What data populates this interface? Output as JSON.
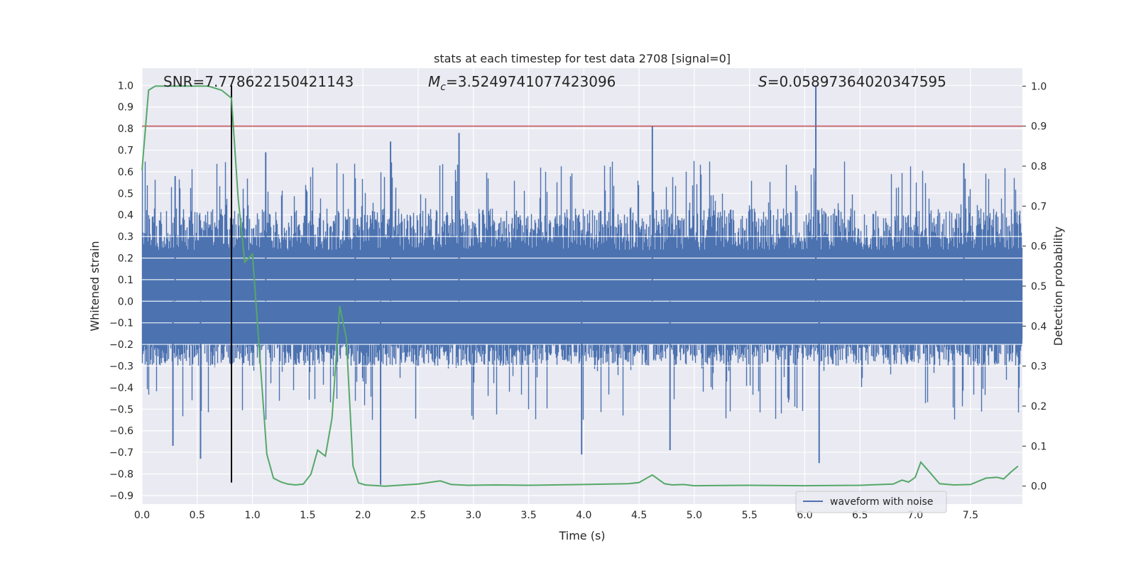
{
  "chart_data": {
    "type": "line",
    "title": "stats at each timestep for test data 2708 [signal=0]",
    "xlabel": "Time (s)",
    "ylabel": "Whitened strain",
    "ylabel_right": "Detection probability",
    "xlim": [
      0.0,
      7.97
    ],
    "ylim": [
      -0.94,
      1.08
    ],
    "ylim_right": [
      -0.045,
      1.045
    ],
    "xticks": [
      "0.0",
      "0.5",
      "1.0",
      "1.5",
      "2.0",
      "2.5",
      "3.0",
      "3.5",
      "4.0",
      "4.5",
      "5.0",
      "5.5",
      "6.0",
      "6.5",
      "7.0",
      "7.5"
    ],
    "yticks": [
      "1.0",
      "0.9",
      "0.8",
      "0.7",
      "0.6",
      "0.5",
      "0.4",
      "0.3",
      "0.2",
      "0.1",
      "0.0",
      "−0.1",
      "−0.2",
      "−0.3",
      "−0.4",
      "−0.5",
      "−0.6",
      "−0.7",
      "−0.8",
      "−0.9"
    ],
    "yticks_right": [
      "1.0",
      "0.9",
      "0.8",
      "0.7",
      "0.6",
      "0.5",
      "0.4",
      "0.3",
      "0.2",
      "0.1",
      "0.0"
    ],
    "annotations": {
      "snr": "SNR=7.778622150421143",
      "mc_symbol": "M",
      "mc_sub": "c",
      "mc_value": "=3.5249741077423096",
      "s_symbol": "S",
      "s_value": "=0.05897364020347595"
    },
    "legend": {
      "label": "waveform with noise",
      "position": "lower right"
    },
    "grid": true,
    "colors": {
      "waveform": "#4c72b0",
      "probability": "#55a868",
      "threshold": "#c44e52",
      "marker": "#000000",
      "background": "#eaeaf2"
    },
    "threshold_right": 0.9,
    "marker_time": 0.81,
    "waveform": {
      "name": "waveform with noise",
      "typical_envelope": [
        -0.3,
        0.43
      ],
      "notable_peaks": [
        {
          "x": 0.3,
          "y": 0.58
        },
        {
          "x": 1.12,
          "y": 0.69
        },
        {
          "x": 1.93,
          "y": 0.57
        },
        {
          "x": 2.25,
          "y": 0.74
        },
        {
          "x": 2.87,
          "y": 0.78
        },
        {
          "x": 4.62,
          "y": 0.81
        },
        {
          "x": 6.1,
          "y": 1.0
        },
        {
          "x": 7.44,
          "y": 0.64
        }
      ],
      "notable_troughs": [
        {
          "x": 0.28,
          "y": -0.67
        },
        {
          "x": 0.53,
          "y": -0.73
        },
        {
          "x": 2.16,
          "y": -0.85
        },
        {
          "x": 3.98,
          "y": -0.71
        },
        {
          "x": 4.78,
          "y": -0.69
        },
        {
          "x": 6.13,
          "y": -0.75
        }
      ]
    },
    "probability": {
      "name": "Detection probability",
      "x": [
        0.0,
        0.06,
        0.12,
        0.2,
        0.4,
        0.6,
        0.72,
        0.81,
        0.87,
        0.93,
        1.0,
        1.06,
        1.13,
        1.19,
        1.26,
        1.32,
        1.39,
        1.46,
        1.53,
        1.59,
        1.66,
        1.72,
        1.79,
        1.85,
        1.91,
        1.96,
        2.02,
        2.2,
        2.5,
        2.7,
        2.8,
        2.95,
        3.2,
        3.5,
        4.0,
        4.4,
        4.5,
        4.62,
        4.73,
        4.8,
        4.9,
        5.0,
        5.5,
        6.0,
        6.5,
        6.8,
        6.88,
        6.94,
        7.0,
        7.05,
        7.13,
        7.22,
        7.35,
        7.5,
        7.64,
        7.74,
        7.8,
        7.87,
        7.93
      ],
      "y": [
        0.79,
        0.99,
        1.0,
        1.0,
        1.0,
        1.0,
        0.99,
        0.97,
        0.72,
        0.56,
        0.58,
        0.35,
        0.08,
        0.02,
        0.01,
        0.005,
        0.003,
        0.005,
        0.03,
        0.09,
        0.075,
        0.17,
        0.45,
        0.37,
        0.05,
        0.008,
        0.003,
        0.0,
        0.005,
        0.013,
        0.004,
        0.002,
        0.003,
        0.002,
        0.004,
        0.006,
        0.009,
        0.028,
        0.006,
        0.003,
        0.004,
        0.001,
        0.002,
        0.001,
        0.002,
        0.005,
        0.015,
        0.01,
        0.022,
        0.06,
        0.035,
        0.006,
        0.003,
        0.004,
        0.02,
        0.022,
        0.018,
        0.036,
        0.05
      ]
    }
  }
}
